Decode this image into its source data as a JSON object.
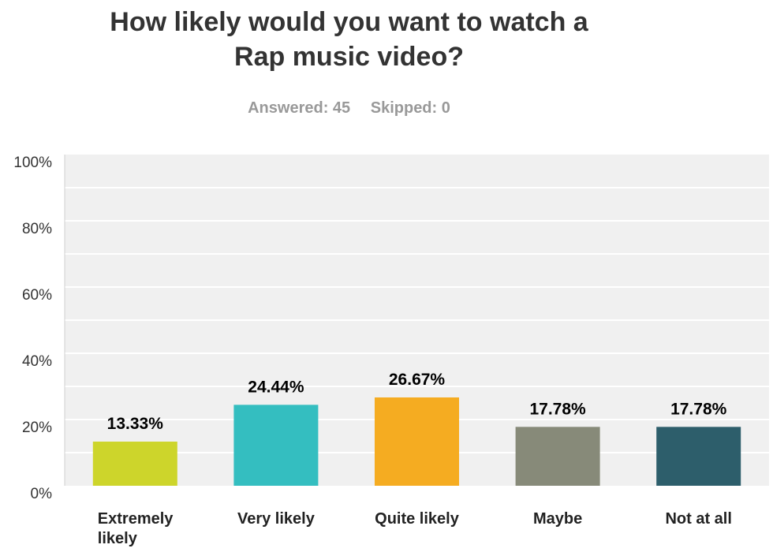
{
  "chart_data": {
    "type": "bar",
    "title": "How likely would you want to watch a Rap music video?",
    "title_lines": [
      "How likely would you want to watch a",
      "Rap music video?"
    ],
    "answered": "Answered: 45",
    "skipped": "Skipped: 0",
    "categories": [
      "Extremely likely",
      "Very likely",
      "Quite likely",
      "Maybe",
      "Not at all"
    ],
    "category_lines": [
      [
        "Extremely",
        "likely"
      ],
      [
        "Very likely"
      ],
      [
        "Quite likely"
      ],
      [
        "Maybe"
      ],
      [
        "Not at all"
      ]
    ],
    "values": [
      13.33,
      24.44,
      26.67,
      17.78,
      17.78
    ],
    "value_labels": [
      "13.33%",
      "24.44%",
      "26.67%",
      "17.78%",
      "17.78%"
    ],
    "colors": [
      "#cdd52b",
      "#34bec0",
      "#f5ac21",
      "#878a79",
      "#2d5e6b"
    ],
    "ylim": [
      0,
      100
    ],
    "yticks": [
      0,
      20,
      40,
      60,
      80,
      100
    ],
    "ytick_labels": [
      "0%",
      "20%",
      "40%",
      "60%",
      "80%",
      "100%"
    ],
    "grid": true,
    "legend": "none",
    "plot_background": "#f0f0f0",
    "gridline_color": "#ffffff"
  }
}
